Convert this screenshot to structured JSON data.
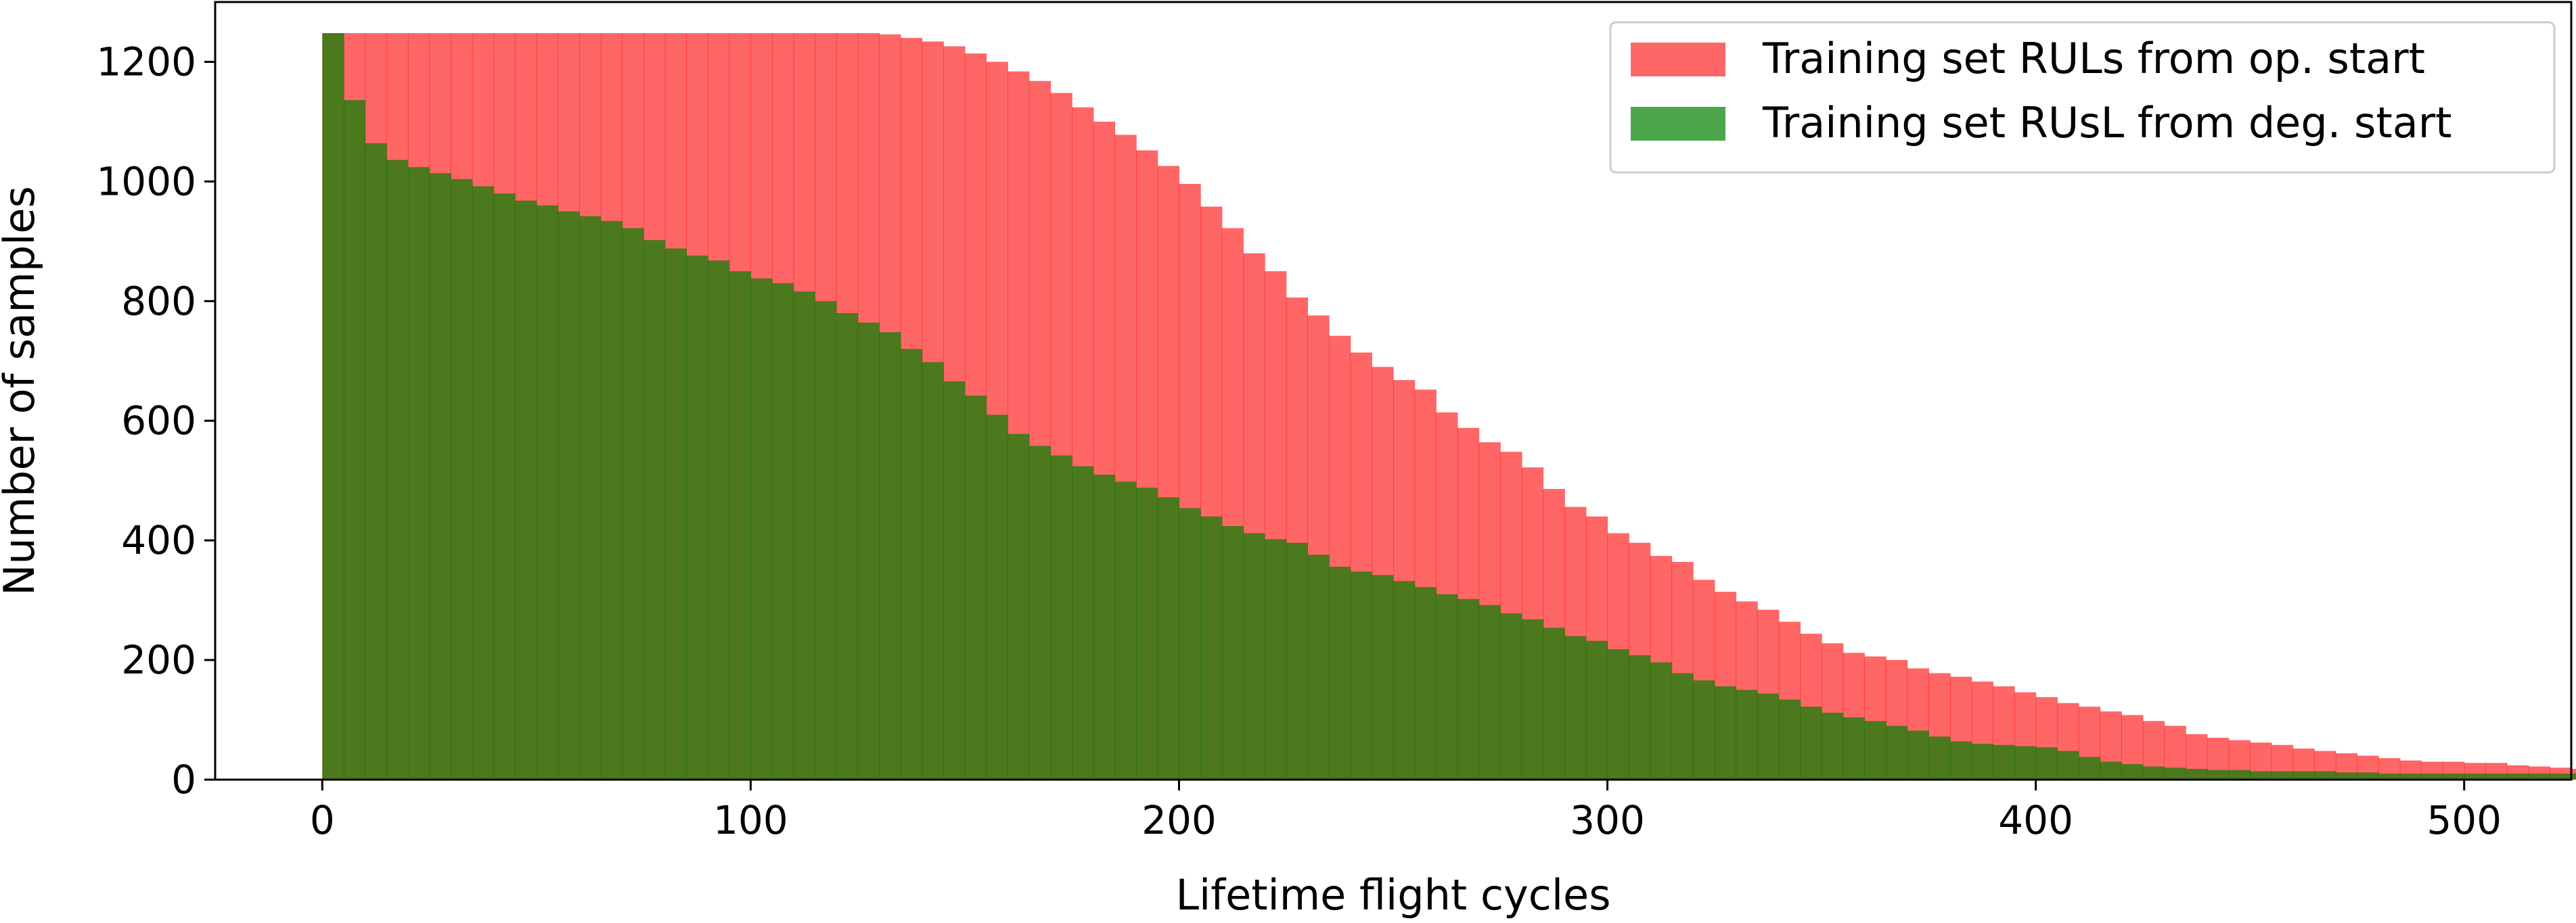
{
  "chart_data": {
    "type": "histogram",
    "title": "",
    "xlabel": "Lifetime flight cycles",
    "ylabel": "Number of samples",
    "xlim": [
      -25,
      525
    ],
    "ylim": [
      0,
      1300
    ],
    "xticks": [
      0,
      100,
      200,
      300,
      400,
      500
    ],
    "yticks": [
      0,
      200,
      400,
      600,
      800,
      1000,
      1200
    ],
    "grid": false,
    "legend_position": "top-right",
    "bin_width": 5,
    "series": [
      {
        "name": "Training set RULs from op. start",
        "color": "#ff0000",
        "alpha": 0.6,
        "bin_start": 0,
        "values": [
          1248,
          1248,
          1248,
          1248,
          1248,
          1248,
          1248,
          1248,
          1248,
          1248,
          1248,
          1248,
          1248,
          1248,
          1248,
          1248,
          1248,
          1248,
          1248,
          1248,
          1248,
          1248,
          1248,
          1248,
          1248,
          1248,
          1246,
          1240,
          1234,
          1226,
          1214,
          1200,
          1184,
          1168,
          1148,
          1124,
          1100,
          1078,
          1052,
          1026,
          996,
          958,
          922,
          880,
          850,
          806,
          776,
          742,
          714,
          690,
          668,
          652,
          614,
          588,
          564,
          548,
          522,
          486,
          456,
          440,
          412,
          396,
          374,
          364,
          334,
          314,
          298,
          284,
          264,
          244,
          228,
          212,
          206,
          200,
          186,
          178,
          172,
          164,
          156,
          146,
          138,
          128,
          122,
          114,
          108,
          98,
          90,
          76,
          70,
          66,
          62,
          58,
          52,
          48,
          44,
          40,
          36,
          32,
          30,
          30,
          28,
          28,
          24,
          22,
          20,
          18,
          16,
          12,
          12,
          10,
          10,
          10,
          10,
          10,
          10,
          10,
          10,
          8,
          8,
          6
        ]
      },
      {
        "name": "Training set RUsL from deg. start",
        "color": "#008000",
        "alpha": 0.7,
        "bin_start": 0,
        "values": [
          1248,
          1136,
          1064,
          1036,
          1024,
          1014,
          1004,
          992,
          980,
          968,
          960,
          950,
          942,
          934,
          922,
          902,
          888,
          876,
          868,
          850,
          838,
          830,
          816,
          800,
          780,
          764,
          748,
          720,
          698,
          666,
          642,
          610,
          578,
          558,
          542,
          524,
          510,
          498,
          488,
          472,
          454,
          440,
          424,
          412,
          402,
          396,
          376,
          356,
          348,
          342,
          332,
          322,
          310,
          302,
          292,
          278,
          268,
          254,
          240,
          232,
          218,
          208,
          196,
          178,
          166,
          156,
          150,
          144,
          134,
          122,
          112,
          104,
          98,
          90,
          82,
          72,
          64,
          60,
          58,
          56,
          54,
          48,
          38,
          30,
          26,
          22,
          20,
          18,
          16,
          16,
          14,
          14,
          14,
          14,
          12,
          12,
          10,
          10,
          10,
          10,
          10,
          10,
          10,
          10,
          10,
          10,
          10,
          10,
          8,
          8,
          8,
          8,
          8,
          6,
          6,
          6,
          6,
          6,
          6,
          6
        ]
      }
    ]
  }
}
